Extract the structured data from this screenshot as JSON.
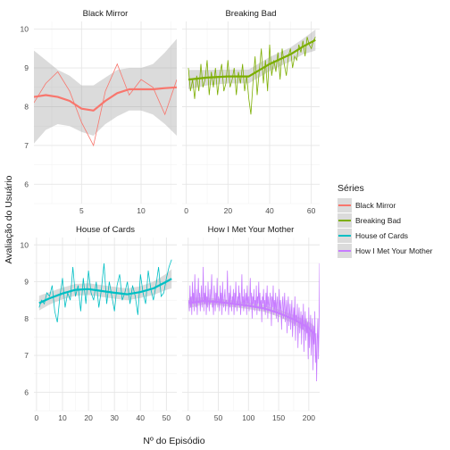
{
  "chart_data": {
    "type": "line",
    "xlabel": "Nº do Episódio",
    "ylabel": "Avaliação do Usuário",
    "legend": {
      "title": "Séries",
      "position": "right"
    },
    "facet_layout": "2x2",
    "grid": true,
    "series": [
      {
        "name": "Black Mirror",
        "color": "#F8766D",
        "xlim": [
          1,
          13
        ],
        "xticks": [
          5,
          10
        ],
        "ylim": [
          5.5,
          10.2
        ],
        "yticks": [
          6,
          7,
          8,
          9,
          10
        ],
        "x": [
          1,
          2,
          3,
          4,
          5,
          6,
          7,
          8,
          9,
          10,
          11,
          12,
          13
        ],
        "values": [
          8.1,
          8.6,
          8.9,
          8.4,
          7.6,
          7.0,
          8.4,
          9.1,
          8.3,
          8.7,
          8.5,
          7.8,
          8.7
        ],
        "smooth": [
          [
            1,
            8.25,
            7.05,
            9.45
          ],
          [
            2,
            8.3,
            7.4,
            9.2
          ],
          [
            3,
            8.25,
            7.55,
            8.95
          ],
          [
            4,
            8.15,
            7.5,
            8.8
          ],
          [
            5,
            7.95,
            7.35,
            8.55
          ],
          [
            6,
            7.9,
            7.25,
            8.55
          ],
          [
            7,
            8.15,
            7.55,
            8.75
          ],
          [
            8,
            8.35,
            7.75,
            8.95
          ],
          [
            9,
            8.45,
            7.9,
            9.0
          ],
          [
            10,
            8.45,
            7.9,
            9.0
          ],
          [
            11,
            8.45,
            7.8,
            9.1
          ],
          [
            12,
            8.48,
            7.55,
            9.4
          ],
          [
            13,
            8.5,
            7.25,
            9.75
          ]
        ]
      },
      {
        "name": "Breaking Bad",
        "color": "#7CAE00",
        "xlim": [
          -2,
          64
        ],
        "xticks": [
          0,
          20,
          40,
          60
        ],
        "ylim": [
          5.5,
          10.2
        ],
        "yticks": [
          6,
          7,
          8,
          9,
          10
        ],
        "x": [
          1,
          2,
          3,
          4,
          5,
          6,
          7,
          8,
          9,
          10,
          11,
          12,
          13,
          14,
          15,
          16,
          17,
          18,
          19,
          20,
          21,
          22,
          23,
          24,
          25,
          26,
          27,
          28,
          29,
          30,
          31,
          32,
          33,
          34,
          35,
          36,
          37,
          38,
          39,
          40,
          41,
          42,
          43,
          44,
          45,
          46,
          47,
          48,
          49,
          50,
          51,
          52,
          53,
          54,
          55,
          56,
          57,
          58,
          59,
          60,
          61,
          62
        ],
        "values": [
          9.0,
          8.4,
          8.7,
          8.2,
          8.8,
          8.4,
          9.1,
          8.5,
          8.7,
          9.2,
          8.3,
          8.9,
          8.5,
          9.0,
          8.3,
          8.8,
          9.1,
          8.4,
          8.6,
          9.2,
          8.5,
          8.7,
          9.0,
          8.3,
          8.9,
          8.6,
          9.1,
          8.4,
          8.8,
          8.2,
          7.8,
          8.6,
          9.3,
          8.3,
          8.9,
          9.5,
          8.6,
          9.2,
          8.4,
          9.6,
          8.8,
          9.2,
          8.9,
          9.4,
          8.7,
          9.5,
          9.1,
          8.8,
          9.3,
          9.5,
          9.0,
          9.3,
          9.2,
          9.6,
          9.4,
          9.7,
          9.3,
          9.8,
          9.6,
          9.5,
          9.7,
          9.8
        ],
        "smooth": [
          [
            1,
            8.7,
            8.45,
            8.95
          ],
          [
            10,
            8.75,
            8.55,
            8.95
          ],
          [
            20,
            8.78,
            8.6,
            8.96
          ],
          [
            30,
            8.78,
            8.6,
            8.96
          ],
          [
            40,
            9.1,
            8.92,
            9.28
          ],
          [
            50,
            9.35,
            9.17,
            9.53
          ],
          [
            56,
            9.55,
            9.35,
            9.75
          ],
          [
            62,
            9.72,
            9.45,
            9.99
          ]
        ]
      },
      {
        "name": "House of Cards",
        "color": "#00BFC4",
        "xlim": [
          -1,
          54
        ],
        "xticks": [
          0,
          10,
          20,
          30,
          40,
          50
        ],
        "ylim": [
          5.5,
          10.2
        ],
        "yticks": [
          6,
          7,
          8,
          9,
          10
        ],
        "x": [
          1,
          2,
          3,
          4,
          5,
          6,
          7,
          8,
          9,
          10,
          11,
          12,
          13,
          14,
          15,
          16,
          17,
          18,
          19,
          20,
          21,
          22,
          23,
          24,
          25,
          26,
          27,
          28,
          29,
          30,
          31,
          32,
          33,
          34,
          35,
          36,
          37,
          38,
          39,
          40,
          41,
          42,
          43,
          44,
          45,
          46,
          47,
          48,
          49,
          50,
          51,
          52
        ],
        "values": [
          8.3,
          8.5,
          8.4,
          8.7,
          8.6,
          8.9,
          8.2,
          7.9,
          8.6,
          9.1,
          8.3,
          8.7,
          8.5,
          9.4,
          8.6,
          8.9,
          8.2,
          9.1,
          8.4,
          9.3,
          8.7,
          8.5,
          9.0,
          8.3,
          8.8,
          9.5,
          8.4,
          9.0,
          8.6,
          8.2,
          8.9,
          9.2,
          8.5,
          8.7,
          9.0,
          8.4,
          8.9,
          8.6,
          8.1,
          9.2,
          8.7,
          8.4,
          9.3,
          8.8,
          8.5,
          8.9,
          9.4,
          8.6,
          8.7,
          9.1,
          9.4,
          9.6
        ],
        "smooth": [
          [
            1,
            8.42,
            8.22,
            8.62
          ],
          [
            5,
            8.55,
            8.38,
            8.72
          ],
          [
            10,
            8.68,
            8.52,
            8.84
          ],
          [
            15,
            8.78,
            8.62,
            8.94
          ],
          [
            20,
            8.8,
            8.64,
            8.96
          ],
          [
            25,
            8.75,
            8.59,
            8.91
          ],
          [
            30,
            8.7,
            8.54,
            8.86
          ],
          [
            35,
            8.66,
            8.5,
            8.82
          ],
          [
            40,
            8.72,
            8.56,
            8.88
          ],
          [
            45,
            8.82,
            8.64,
            9.0
          ],
          [
            50,
            9.0,
            8.78,
            9.22
          ],
          [
            52,
            9.08,
            8.82,
            9.34
          ]
        ]
      },
      {
        "name": "How I Met Your Mother",
        "color": "#C77CFF",
        "xlim": [
          -10,
          218
        ],
        "xticks": [
          0,
          50,
          100,
          150,
          200
        ],
        "ylim": [
          5.5,
          10.2
        ],
        "yticks": [
          6,
          7,
          8,
          9,
          10
        ],
        "x_start": 1,
        "values": [
          8.5,
          8.2,
          8.9,
          8.3,
          8.6,
          8.1,
          9.0,
          8.4,
          8.7,
          8.2,
          9.2,
          8.5,
          8.3,
          8.8,
          8.1,
          8.6,
          9.1,
          8.4,
          8.7,
          8.2,
          8.5,
          8.9,
          8.3,
          8.6,
          9.4,
          8.2,
          8.7,
          8.4,
          8.9,
          8.1,
          8.6,
          8.3,
          9.0,
          8.5,
          8.2,
          8.8,
          8.4,
          8.7,
          9.2,
          8.3,
          8.5,
          8.1,
          8.9,
          8.6,
          8.2,
          8.7,
          8.4,
          9.1,
          8.3,
          8.6,
          8.5,
          8.2,
          8.9,
          8.4,
          8.7,
          8.1,
          9.0,
          8.5,
          8.3,
          8.6,
          8.8,
          8.2,
          8.5,
          8.4,
          9.3,
          8.6,
          8.1,
          8.7,
          8.3,
          8.9,
          8.5,
          8.2,
          8.6,
          8.4,
          8.8,
          8.1,
          8.7,
          8.3,
          9.0,
          8.5,
          8.2,
          8.6,
          8.4,
          8.9,
          8.3,
          8.7,
          8.1,
          8.5,
          9.2,
          8.4,
          8.6,
          8.2,
          8.8,
          8.3,
          8.5,
          8.7,
          8.1,
          8.9,
          8.4,
          8.6,
          8.2,
          8.5,
          9.1,
          8.3,
          8.7,
          8.0,
          8.6,
          8.4,
          8.8,
          8.2,
          8.5,
          8.3,
          8.9,
          8.1,
          8.6,
          8.4,
          9.0,
          8.2,
          8.7,
          8.3,
          8.5,
          7.9,
          8.6,
          8.4,
          8.8,
          8.2,
          8.5,
          8.1,
          8.7,
          8.3,
          8.9,
          8.0,
          8.6,
          8.4,
          8.2,
          8.7,
          8.5,
          7.8,
          8.6,
          8.3,
          8.9,
          8.1,
          8.5,
          8.2,
          8.7,
          8.0,
          8.4,
          8.6,
          7.9,
          8.3,
          8.8,
          8.1,
          8.5,
          8.2,
          7.7,
          8.4,
          8.6,
          8.0,
          8.3,
          8.7,
          7.9,
          8.2,
          8.5,
          7.6,
          8.3,
          8.6,
          7.8,
          8.1,
          8.4,
          7.7,
          8.2,
          8.5,
          7.5,
          8.0,
          8.3,
          7.8,
          8.6,
          7.4,
          8.1,
          7.9,
          8.4,
          7.2,
          8.0,
          8.3,
          7.6,
          7.9,
          8.2,
          7.3,
          8.1,
          7.7,
          8.4,
          7.1,
          7.8,
          8.2,
          7.4,
          8.0,
          7.6,
          7.9,
          6.9,
          8.3,
          7.2,
          7.7,
          8.1,
          7.0,
          7.5,
          8.0,
          6.6,
          7.8,
          7.3,
          8.2,
          6.8,
          7.6,
          6.3,
          7.4,
          8.0,
          6.9,
          7.8,
          9.5,
          6.2,
          7.3,
          8.4,
          5.8,
          9.2
        ],
        "smooth": [
          [
            1,
            8.42,
            8.28,
            8.56
          ],
          [
            25,
            8.48,
            8.38,
            8.58
          ],
          [
            50,
            8.45,
            8.36,
            8.54
          ],
          [
            75,
            8.4,
            8.31,
            8.49
          ],
          [
            100,
            8.35,
            8.26,
            8.44
          ],
          [
            125,
            8.28,
            8.19,
            8.37
          ],
          [
            150,
            8.15,
            8.05,
            8.25
          ],
          [
            175,
            7.98,
            7.86,
            8.1
          ],
          [
            200,
            7.75,
            7.58,
            7.92
          ],
          [
            208,
            7.6,
            7.38,
            7.82
          ]
        ]
      }
    ]
  }
}
